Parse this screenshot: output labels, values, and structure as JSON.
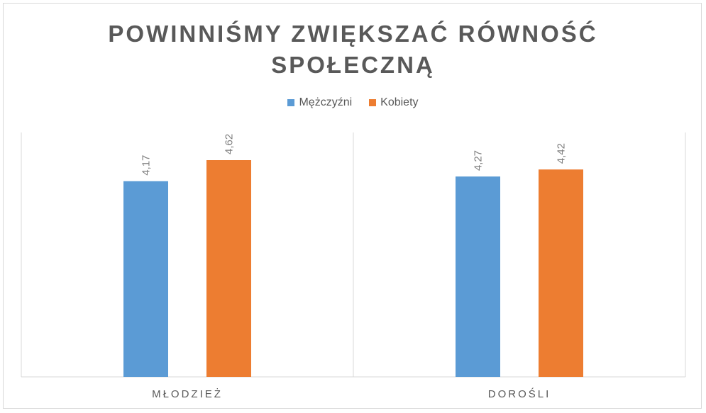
{
  "chart_data": {
    "type": "bar",
    "title": "POWINNIŚMY ZWIĘKSZAĆ RÓWNOŚĆ SPOŁECZNĄ",
    "title_lines": [
      "POWINNIŚMY ZWIĘKSZAĆ RÓWNOŚĆ",
      "SPOŁECZNĄ"
    ],
    "categories": [
      "MŁODZIEŻ",
      "DOROŚLI"
    ],
    "series": [
      {
        "name": "Mężczyźni",
        "color": "#5b9bd5",
        "values": [
          4.17,
          4.27
        ],
        "labels": [
          "4,17",
          "4,27"
        ]
      },
      {
        "name": "Kobiety",
        "color": "#ed7d31",
        "values": [
          4.62,
          4.42
        ],
        "labels": [
          "4,62",
          "4,42"
        ]
      }
    ],
    "xlabel": "",
    "ylabel": "",
    "ylim": [
      0,
      5.5
    ],
    "grid": false,
    "legend_position": "top"
  }
}
